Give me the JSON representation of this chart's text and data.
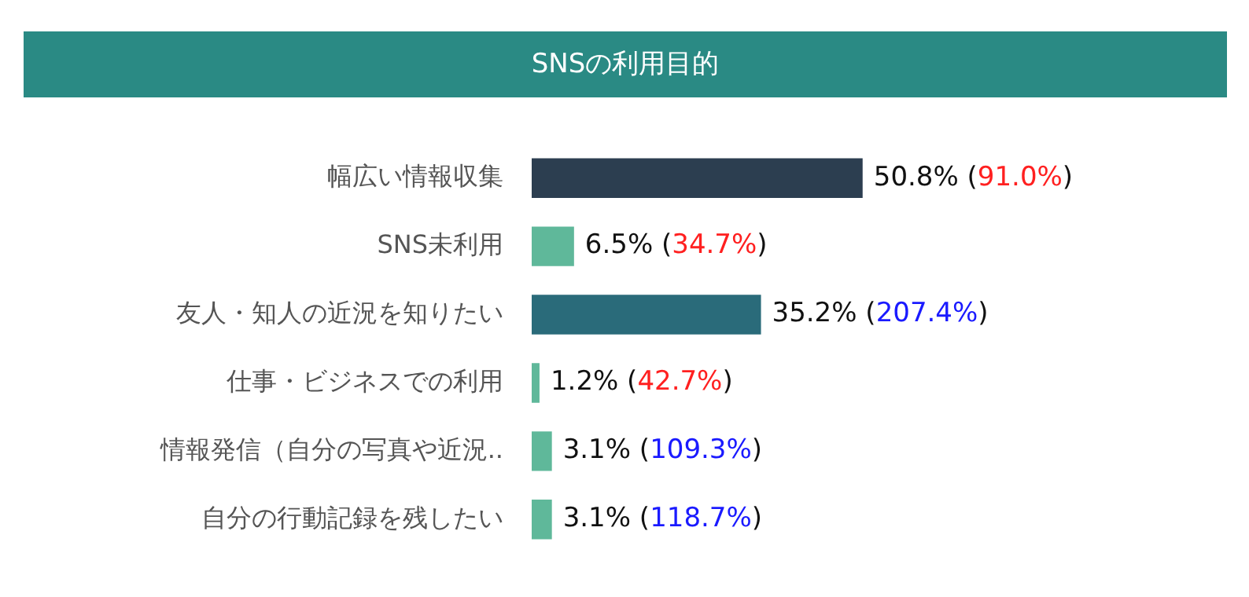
{
  "chart_data": {
    "type": "bar",
    "orientation": "horizontal",
    "title": "SNSの利用目的",
    "categories": [
      "幅広い情報収集",
      "SNS未利用",
      "友人・知人の近況を知りたい",
      "仕事・ビジネスでの利用",
      "情報発信（自分の写真や近況..",
      "自分の行動記録を残したい"
    ],
    "values": [
      50.8,
      6.5,
      35.2,
      1.2,
      3.1,
      3.1
    ],
    "colors": [
      "#2c3e50",
      "#5fb89a",
      "#2a6b7a",
      "#5fb89a",
      "#5fb89a",
      "#5fb89a"
    ],
    "value_labels": [
      "50.8% (91.0%)",
      "6.5% (34.7%)",
      "35.2% (207.4%)",
      "1.2% (42.7%)",
      "3.1% (109.3%)",
      "3.1% (118.7%)"
    ],
    "legend": false,
    "grid": false
  }
}
